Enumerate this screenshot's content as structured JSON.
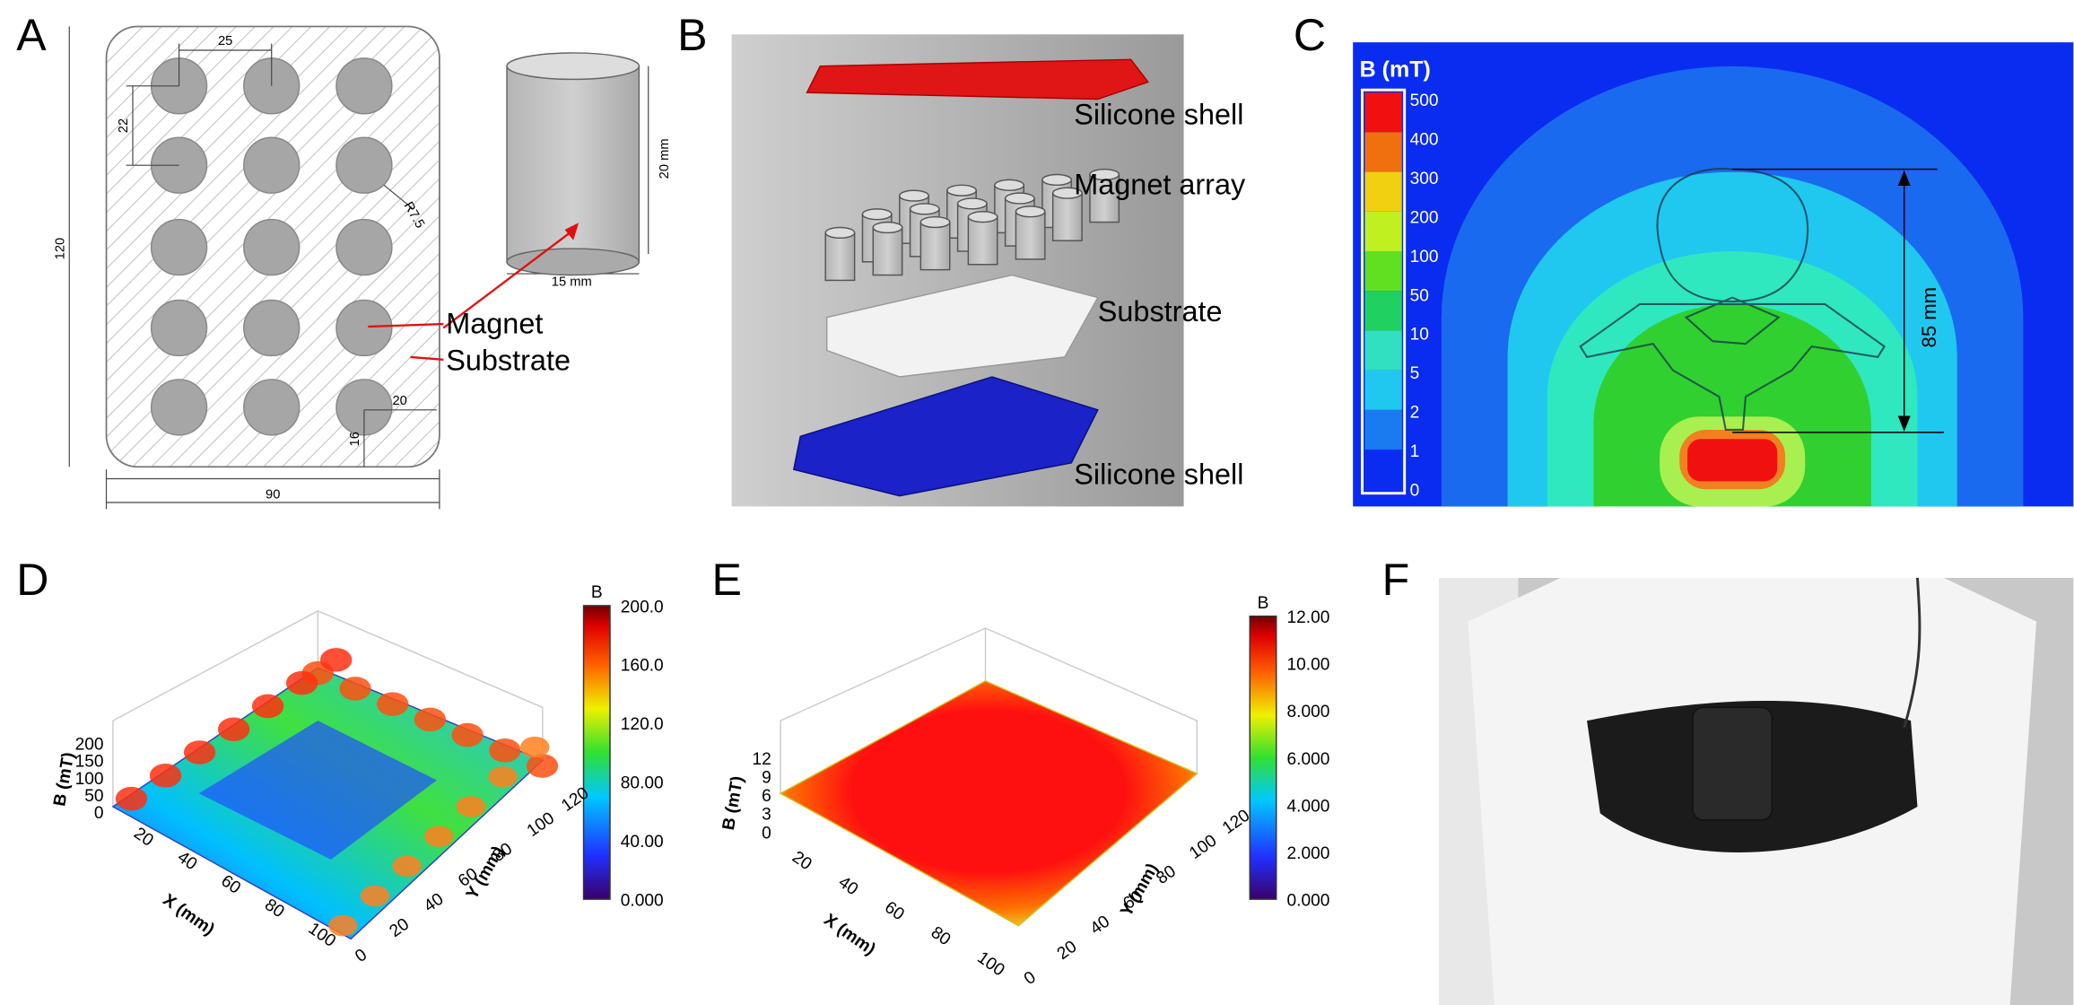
{
  "panels": {
    "A": {
      "label": "A",
      "dims": {
        "pitch_x": "25",
        "pitch_y": "22",
        "height": "120",
        "radius": "R7.5",
        "edge_x": "20",
        "edge_y": "16",
        "width": "90",
        "magnet_h": "20 mm",
        "magnet_d": "15 mm"
      },
      "callouts": [
        "Magnet",
        "Substrate"
      ]
    },
    "B": {
      "label": "B",
      "layers": [
        "Silicone shell",
        "Magnet array",
        "Substrate",
        "Silicone shell"
      ]
    },
    "C": {
      "label": "C",
      "legend_title": "B (mT)",
      "legend_levels": [
        "500",
        "400",
        "300",
        "200",
        "100",
        "50",
        "10",
        "5",
        "2",
        "1",
        "0"
      ],
      "distance": "85 mm"
    },
    "D": {
      "label": "D",
      "colorbar_title": "B",
      "colorbar_ticks": [
        "200.0",
        "160.0",
        "120.0",
        "80.00",
        "40.00",
        "0.000"
      ],
      "z_label": "B (mT)",
      "x_label": "X (mm)",
      "y_label": "Y (mm)",
      "z_ticks": [
        "200",
        "150",
        "100",
        "50",
        "0"
      ],
      "x_ticks": [
        "20",
        "40",
        "60",
        "80",
        "100"
      ],
      "y_ticks": [
        "0",
        "20",
        "40",
        "60",
        "80",
        "100",
        "120"
      ]
    },
    "E": {
      "label": "E",
      "colorbar_title": "B",
      "colorbar_ticks": [
        "12.00",
        "10.00",
        "8.000",
        "6.000",
        "4.000",
        "2.000",
        "0.000"
      ],
      "z_label": "B (mT)",
      "x_label": "X (mm)",
      "y_label": "Y (mm)",
      "z_ticks": [
        "12",
        "9",
        "6",
        "3",
        "0"
      ],
      "x_ticks": [
        "20",
        "40",
        "60",
        "80",
        "100"
      ],
      "y_ticks": [
        "0",
        "20",
        "40",
        "60",
        "80",
        "100",
        "120"
      ]
    },
    "F": {
      "label": "F"
    }
  }
}
